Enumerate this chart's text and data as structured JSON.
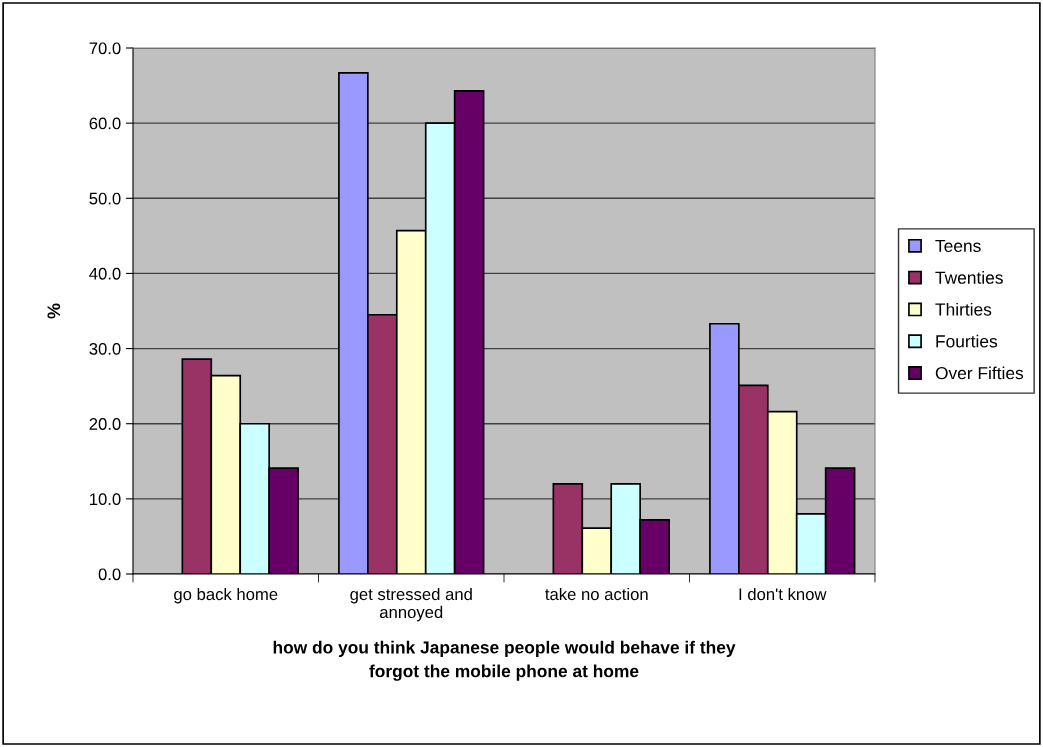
{
  "chart_data": {
    "type": "bar",
    "categories": [
      "go back home",
      "get stressed and\nannoyed",
      "take no action",
      "I don't know"
    ],
    "series": [
      {
        "name": "Teens",
        "color": "#9999ff",
        "values": [
          null,
          66.7,
          null,
          33.3
        ]
      },
      {
        "name": "Twenties",
        "color": "#993366",
        "values": [
          28.6,
          34.5,
          12.0,
          25.1
        ]
      },
      {
        "name": "Thirties",
        "color": "#ffffcc",
        "values": [
          26.4,
          45.7,
          6.1,
          21.6
        ]
      },
      {
        "name": "Fourties",
        "color": "#ccffff",
        "values": [
          20.0,
          60.0,
          12.0,
          8.0
        ]
      },
      {
        "name": "Over Fifties",
        "color": "#660066",
        "values": [
          14.1,
          64.3,
          7.2,
          14.1
        ]
      }
    ],
    "xlabel": "how do you think Japanese people would behave if they\nforgot the mobile phone at home",
    "ylabel": "%",
    "ylim": [
      0,
      70
    ],
    "yticks": [
      {
        "value": 0,
        "label": "0.0"
      },
      {
        "value": 10,
        "label": "10.0"
      },
      {
        "value": 20,
        "label": "20.0"
      },
      {
        "value": 30,
        "label": "30.0"
      },
      {
        "value": 40,
        "label": "40.0"
      },
      {
        "value": 50,
        "label": "50.0"
      },
      {
        "value": 60,
        "label": "60.0"
      },
      {
        "value": 70,
        "label": "70.0"
      }
    ],
    "grid": "y",
    "legend": "right"
  }
}
